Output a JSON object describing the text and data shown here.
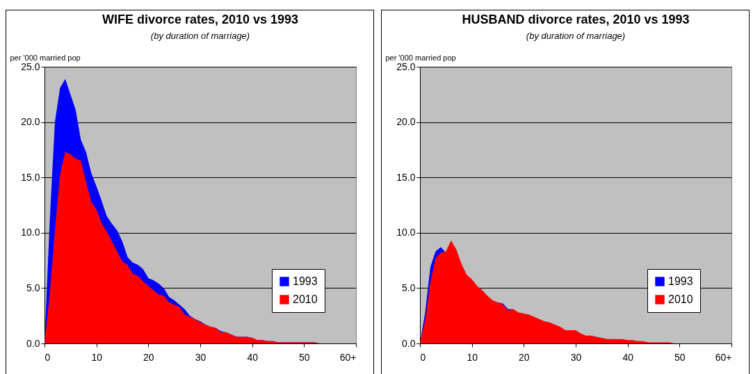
{
  "chart_data": [
    {
      "type": "area",
      "title": "WIFE divorce rates, 2010 vs 1993",
      "subtitle": "(by duration of marriage)",
      "ylabel": "per '000 married pop",
      "x": [
        0,
        1,
        2,
        3,
        4,
        5,
        6,
        7,
        8,
        9,
        10,
        11,
        12,
        13,
        14,
        15,
        16,
        17,
        18,
        19,
        20,
        21,
        22,
        23,
        24,
        25,
        26,
        27,
        28,
        29,
        30,
        31,
        32,
        33,
        34,
        35,
        36,
        37,
        38,
        39,
        40,
        41,
        42,
        43,
        44,
        45,
        46,
        47,
        48,
        49,
        50,
        51,
        52,
        53,
        54,
        55,
        56,
        57,
        58,
        59,
        60
      ],
      "series": [
        {
          "name": "1993",
          "color": "#0000ff",
          "values": [
            0,
            11.0,
            20.0,
            23.1,
            23.9,
            22.5,
            21.1,
            18.4,
            17.3,
            15.4,
            14.2,
            12.9,
            11.5,
            10.8,
            10.2,
            9.2,
            7.8,
            7.3,
            7.1,
            6.7,
            5.9,
            5.7,
            5.4,
            5.0,
            4.2,
            3.9,
            3.5,
            3.1,
            2.5,
            2.2,
            2.0,
            1.7,
            1.5,
            1.4,
            1.1,
            1.0,
            0.8,
            0.6,
            0.6,
            0.6,
            0.5,
            0.3,
            0.3,
            0.2,
            0.2,
            0.1,
            0.1,
            0.1,
            0.1,
            0.1,
            0.1,
            0.1,
            0.1,
            0,
            0,
            0,
            0,
            0,
            0,
            0,
            0
          ]
        },
        {
          "name": "2010",
          "color": "#ff0000",
          "values": [
            0,
            4.4,
            10.2,
            15.3,
            17.3,
            17.1,
            16.7,
            16.5,
            14.6,
            12.8,
            12.1,
            10.9,
            10.1,
            9.2,
            8.3,
            7.4,
            7.1,
            6.3,
            6.1,
            5.6,
            5.2,
            4.8,
            4.4,
            4.3,
            3.7,
            3.5,
            3.3,
            2.6,
            2.4,
            2.2,
            1.9,
            1.7,
            1.5,
            1.4,
            1.0,
            1.0,
            0.8,
            0.6,
            0.6,
            0.6,
            0.5,
            0.3,
            0.3,
            0.2,
            0.2,
            0.1,
            0.1,
            0.1,
            0.1,
            0.1,
            0.1,
            0.1,
            0.1,
            0,
            0,
            0,
            0,
            0,
            0,
            0,
            0
          ]
        }
      ],
      "xlim": [
        0,
        60
      ],
      "xticks": [
        0,
        10,
        20,
        30,
        40,
        50,
        {
          "value": 60,
          "label": "60+"
        }
      ],
      "ylim": [
        0,
        25
      ],
      "yticks": [
        {
          "value": 0,
          "label": "0.0"
        },
        {
          "value": 5,
          "label": "5.0"
        },
        {
          "value": 10,
          "label": "10.0"
        },
        {
          "value": 15,
          "label": "15.0"
        },
        {
          "value": 20,
          "label": "20.0"
        },
        {
          "value": 25,
          "label": "25.0"
        }
      ],
      "grid": "y",
      "legend": "bottom right"
    },
    {
      "type": "area",
      "title": "HUSBAND divorce rates, 2010 vs 1993",
      "subtitle": "(by duration of marriage)",
      "ylabel": "per '000 married pop",
      "x": [
        0,
        1,
        2,
        3,
        4,
        5,
        6,
        7,
        8,
        9,
        10,
        11,
        12,
        13,
        14,
        15,
        16,
        17,
        18,
        19,
        20,
        21,
        22,
        23,
        24,
        25,
        26,
        27,
        28,
        29,
        30,
        31,
        32,
        33,
        34,
        35,
        36,
        37,
        38,
        39,
        40,
        41,
        42,
        43,
        44,
        45,
        46,
        47,
        48,
        49,
        50,
        51,
        52,
        53,
        54,
        55,
        56,
        57,
        58,
        59,
        60
      ],
      "series": [
        {
          "name": "1993",
          "color": "#0000ff",
          "values": [
            0,
            2.8,
            6.9,
            8.3,
            8.7,
            8.2,
            null,
            null,
            null,
            null,
            null,
            null,
            null,
            null,
            null,
            3.7,
            3.6,
            3.1,
            3.1,
            null,
            null,
            null,
            null,
            null,
            null,
            null,
            null,
            null,
            null,
            null,
            null,
            null,
            null,
            null,
            null,
            null,
            null,
            null,
            null,
            null,
            null,
            null,
            null,
            null,
            null,
            null,
            null,
            null,
            null,
            null,
            null,
            null,
            null,
            null,
            null,
            null,
            null,
            null,
            null,
            null,
            null
          ]
        },
        {
          "name": "2010",
          "color": "#ff0000",
          "values": [
            0,
            2.1,
            5.5,
            7.7,
            8.2,
            8.3,
            9.3,
            8.5,
            7.2,
            6.2,
            5.8,
            5.2,
            4.8,
            4.3,
            3.9,
            3.7,
            3.5,
            3.0,
            3.1,
            2.8,
            2.7,
            2.6,
            2.4,
            2.2,
            2.0,
            1.9,
            1.7,
            1.5,
            1.2,
            1.2,
            1.2,
            0.9,
            0.7,
            0.7,
            0.6,
            0.5,
            0.4,
            0.4,
            0.4,
            0.4,
            0.3,
            0.3,
            0.2,
            0.2,
            0.1,
            0.1,
            0.1,
            0.1,
            0.1,
            0,
            0,
            0,
            0,
            0,
            0,
            0,
            0,
            0,
            0,
            0,
            0
          ]
        }
      ],
      "xlim": [
        0,
        60
      ],
      "xticks": [
        0,
        10,
        20,
        30,
        40,
        50,
        {
          "value": 60,
          "label": "60+"
        }
      ],
      "ylim": [
        0,
        25
      ],
      "yticks": [
        {
          "value": 0,
          "label": "0.0"
        },
        {
          "value": 5,
          "label": "5.0"
        },
        {
          "value": 10,
          "label": "10.0"
        },
        {
          "value": 15,
          "label": "15.0"
        },
        {
          "value": 20,
          "label": "20.0"
        },
        {
          "value": 25,
          "label": "25.0"
        }
      ],
      "grid": "y",
      "legend": "bottom right"
    }
  ]
}
